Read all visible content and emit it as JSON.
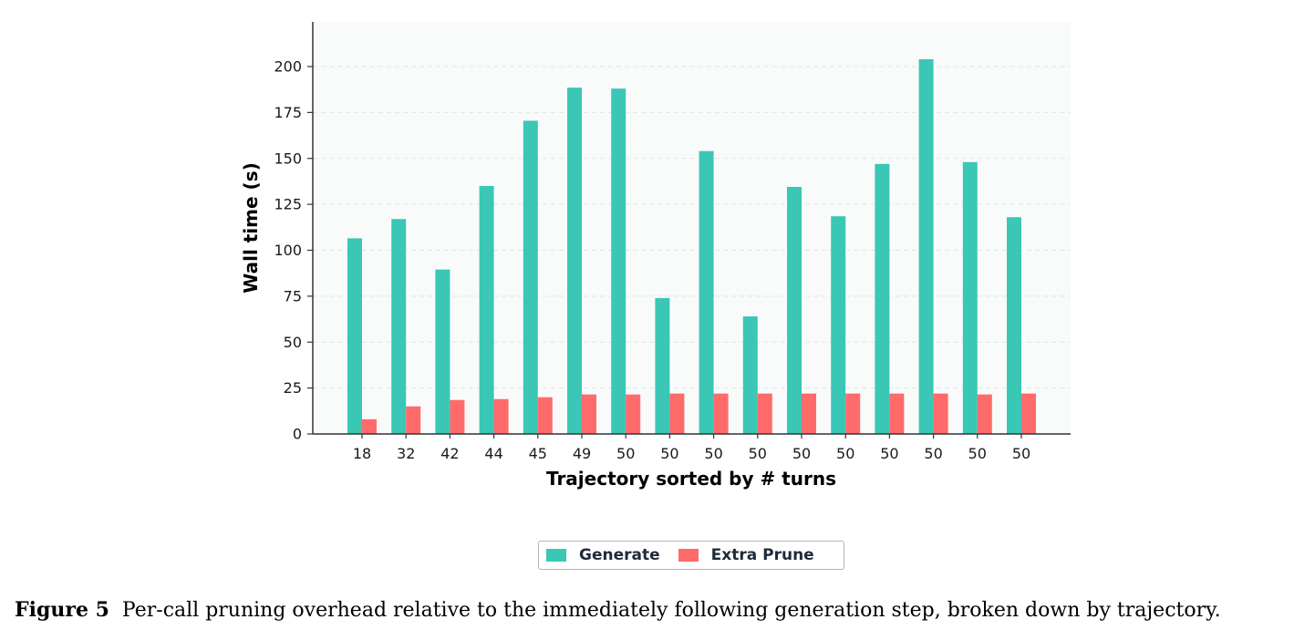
{
  "chart_data": {
    "type": "bar",
    "categories": [
      "18",
      "32",
      "42",
      "44",
      "45",
      "49",
      "50",
      "50",
      "50",
      "50",
      "50",
      "50",
      "50",
      "50",
      "50",
      "50"
    ],
    "series": [
      {
        "name": "Generate",
        "color": "#3ac7b6",
        "values": [
          106.5,
          117,
          89.5,
          135,
          170.5,
          188.5,
          188,
          74,
          154,
          64,
          134.5,
          118.5,
          147,
          204,
          148,
          118
        ]
      },
      {
        "name": "Extra Prune",
        "color": "#ff6b6b",
        "values": [
          8,
          15,
          18.5,
          19,
          20,
          21.5,
          21.5,
          22,
          22,
          22,
          22,
          22,
          22,
          22,
          21.5,
          22
        ]
      }
    ],
    "xlabel": "Trajectory sorted by # turns",
    "ylabel": "Wall time (s)",
    "ylim": [
      0,
      225
    ],
    "yticks": [
      0,
      25,
      50,
      75,
      100,
      125,
      150,
      175,
      200
    ],
    "grid": true,
    "legend_position": "bottom-center"
  },
  "caption": {
    "label": "Figure 5",
    "text": "Per-call pruning overhead relative to the immediately following generation step, broken down by trajectory."
  }
}
